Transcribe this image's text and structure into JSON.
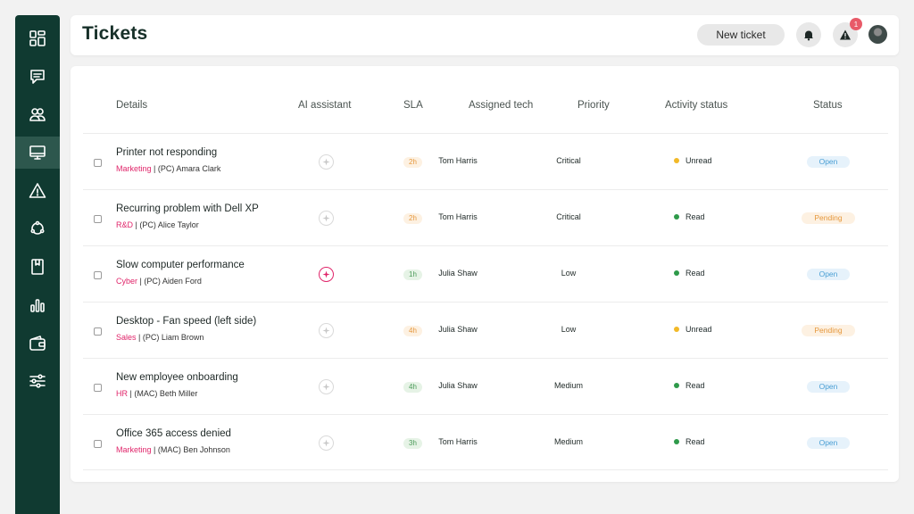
{
  "header": {
    "title": "Tickets",
    "new_ticket_label": "New ticket",
    "notification_count": "1"
  },
  "sidebar": {
    "items": [
      {
        "icon": "dashboard-icon"
      },
      {
        "icon": "message-icon"
      },
      {
        "icon": "users-icon"
      },
      {
        "icon": "monitor-icon",
        "active": true
      },
      {
        "icon": "alert-triangle-icon"
      },
      {
        "icon": "network-icon"
      },
      {
        "icon": "book-icon"
      },
      {
        "icon": "bar-chart-icon"
      },
      {
        "icon": "wallet-icon"
      },
      {
        "icon": "sliders-icon"
      }
    ]
  },
  "table": {
    "columns": {
      "details": "Details",
      "ai": "AI assistant",
      "sla": "SLA",
      "tech": "Assigned tech",
      "priority": "Priority",
      "activity": "Activity status",
      "status": "Status"
    },
    "rows": [
      {
        "title": "Printer not responding",
        "dept": "Marketing",
        "device": " | (PC) Amara Clark",
        "ai_active": false,
        "sla": "2h",
        "sla_level": "warn",
        "tech": "Tom Harris",
        "priority": "Critical",
        "activity": "Unread",
        "status": "Open"
      },
      {
        "title": "Recurring problem with Dell XP",
        "dept": "R&D",
        "device": " | (PC) Alice Taylor",
        "ai_active": false,
        "sla": "2h",
        "sla_level": "warn",
        "tech": "Tom Harris",
        "priority": "Critical",
        "activity": "Read",
        "status": "Pending"
      },
      {
        "title": "Slow computer performance",
        "dept": "Cyber",
        "device": " | (PC) Aiden Ford",
        "ai_active": true,
        "sla": "1h",
        "sla_level": "ok",
        "tech": "Julia Shaw",
        "priority": "Low",
        "activity": "Read",
        "status": "Open"
      },
      {
        "title": "Desktop - Fan speed (left side)",
        "dept": "Sales",
        "device": " | (PC) Liam Brown",
        "ai_active": false,
        "sla": "4h",
        "sla_level": "warn",
        "tech": "Julia Shaw",
        "priority": "Low",
        "activity": "Unread",
        "status": "Pending"
      },
      {
        "title": "New employee onboarding",
        "dept": "HR",
        "device": " | (MAC) Beth Miller",
        "ai_active": false,
        "sla": "4h",
        "sla_level": "ok",
        "tech": "Julia Shaw",
        "priority": "Medium",
        "activity": "Read",
        "status": "Open"
      },
      {
        "title": "Office 365 access denied",
        "dept": "Marketing",
        "device": " | (MAC) Ben Johnson",
        "ai_active": false,
        "sla": "3h",
        "sla_level": "ok",
        "tech": "Tom Harris",
        "priority": "Medium",
        "activity": "Read",
        "status": "Open"
      }
    ]
  },
  "colors": {
    "sidebar": "#103a31",
    "accent_pink": "#e0256a",
    "unread_dot": "#f2b928",
    "read_dot": "#2e9a4a",
    "open": "#4a9fd4",
    "pending": "#e5973c"
  }
}
